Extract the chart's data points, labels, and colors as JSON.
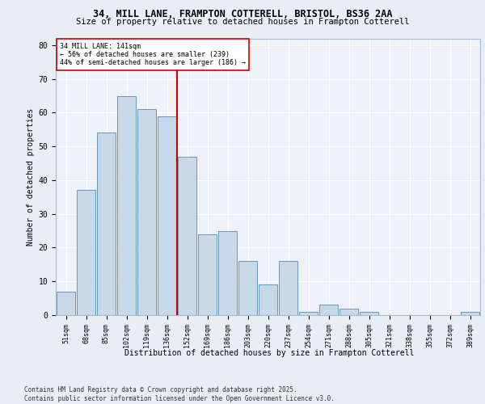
{
  "title1": "34, MILL LANE, FRAMPTON COTTERELL, BRISTOL, BS36 2AA",
  "title2": "Size of property relative to detached houses in Frampton Cotterell",
  "xlabel": "Distribution of detached houses by size in Frampton Cotterell",
  "ylabel": "Number of detached properties",
  "categories": [
    "51sqm",
    "68sqm",
    "85sqm",
    "102sqm",
    "119sqm",
    "136sqm",
    "152sqm",
    "169sqm",
    "186sqm",
    "203sqm",
    "220sqm",
    "237sqm",
    "254sqm",
    "271sqm",
    "288sqm",
    "305sqm",
    "321sqm",
    "338sqm",
    "355sqm",
    "372sqm",
    "389sqm"
  ],
  "values": [
    7,
    37,
    54,
    65,
    61,
    59,
    47,
    24,
    25,
    16,
    9,
    16,
    1,
    3,
    2,
    1,
    0,
    0,
    0,
    0,
    1
  ],
  "bar_color": "#c8d8e8",
  "bar_edge_color": "#6699bb",
  "vline_x": 5.5,
  "vline_color": "#cc0000",
  "annotation_title": "34 MILL LANE: 141sqm",
  "annotation_line1": "← 56% of detached houses are smaller (239)",
  "annotation_line2": "44% of semi-detached houses are larger (186) →",
  "annotation_box_color": "#cc0000",
  "ylim": [
    0,
    82
  ],
  "yticks": [
    0,
    10,
    20,
    30,
    40,
    50,
    60,
    70,
    80
  ],
  "footer": "Contains HM Land Registry data © Crown copyright and database right 2025.\nContains public sector information licensed under the Open Government Licence v3.0.",
  "bg_color": "#e8eef4",
  "plot_bg_color": "#eef2f8"
}
